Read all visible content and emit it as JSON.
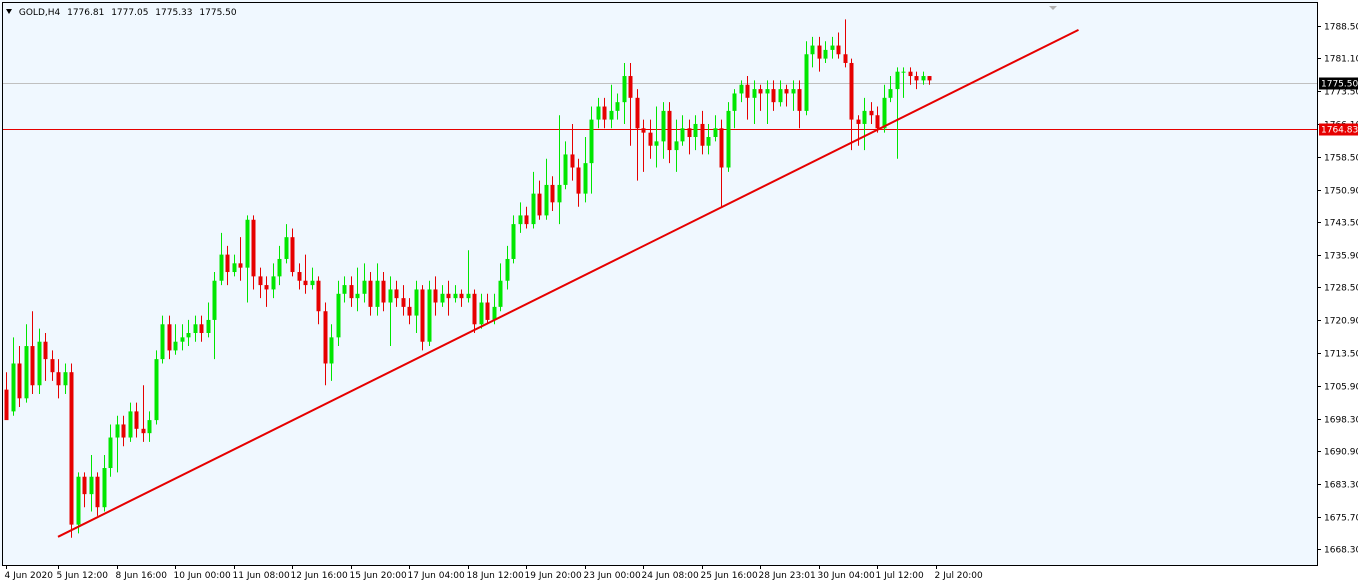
{
  "header": {
    "symbol": "GOLD,H4",
    "open": "1776.81",
    "high": "1777.05",
    "low": "1775.33",
    "close": "1775.50"
  },
  "colors": {
    "background": "#f0f8ff",
    "bull": "#00e600",
    "bear": "#e60000",
    "trendline": "#e60000",
    "hline": "#e60000",
    "bidline": "#c0c0c0",
    "axis": "#000000"
  },
  "chart_data": {
    "type": "candlestick",
    "symbol": "GOLD",
    "timeframe": "H4",
    "ylim": [
      1664.5,
      1794
    ],
    "y_ticks": [
      "1788.50",
      "1781.10",
      "1773.50",
      "1766.10",
      "1758.50",
      "1750.90",
      "1743.50",
      "1735.90",
      "1728.50",
      "1720.90",
      "1713.50",
      "1705.90",
      "1698.30",
      "1690.90",
      "1683.30",
      "1675.70",
      "1668.30"
    ],
    "x_ticks": [
      {
        "i": 0,
        "label": "4 Jun 2020"
      },
      {
        "i": 8,
        "label": "5 Jun 12:00"
      },
      {
        "i": 17,
        "label": "8 Jun 16:00"
      },
      {
        "i": 26,
        "label": "10 Jun 00:00"
      },
      {
        "i": 35,
        "label": "11 Jun 08:00"
      },
      {
        "i": 44,
        "label": "12 Jun 16:00"
      },
      {
        "i": 53,
        "label": "15 Jun 20:00"
      },
      {
        "i": 62,
        "label": "17 Jun 04:00"
      },
      {
        "i": 71,
        "label": "18 Jun 12:00"
      },
      {
        "i": 80,
        "label": "19 Jun 20:00"
      },
      {
        "i": 89,
        "label": "23 Jun 00:00"
      },
      {
        "i": 98,
        "label": "24 Jun 08:00"
      },
      {
        "i": 107,
        "label": "25 Jun 16:00"
      },
      {
        "i": 116,
        "label": "28 Jun 23:01"
      },
      {
        "i": 125,
        "label": "30 Jun 04:00"
      },
      {
        "i": 134,
        "label": "1 Jul 12:00"
      },
      {
        "i": 143,
        "label": "2 Jul 20:00"
      }
    ],
    "candles": [
      [
        1705,
        1698,
        1709,
        1700
      ],
      [
        1700,
        1711,
        1717,
        1699
      ],
      [
        1711,
        1703,
        1715,
        1701
      ],
      [
        1703,
        1715,
        1720,
        1702
      ],
      [
        1715,
        1706,
        1723,
        1704
      ],
      [
        1706,
        1716,
        1719,
        1704
      ],
      [
        1716,
        1712,
        1718,
        1707
      ],
      [
        1712,
        1709,
        1714,
        1707
      ],
      [
        1709,
        1706,
        1712,
        1703
      ],
      [
        1706,
        1709,
        1711,
        1704
      ],
      [
        1709,
        1674,
        1711,
        1671
      ],
      [
        1674,
        1685,
        1686,
        1672
      ],
      [
        1685,
        1681,
        1686,
        1678
      ],
      [
        1681,
        1685,
        1690,
        1677
      ],
      [
        1685,
        1678,
        1686,
        1676
      ],
      [
        1678,
        1687,
        1690,
        1677
      ],
      [
        1687,
        1694,
        1697,
        1685
      ],
      [
        1694,
        1697,
        1699,
        1686
      ],
      [
        1697,
        1694,
        1699,
        1692
      ],
      [
        1694,
        1700,
        1702,
        1693
      ],
      [
        1700,
        1696,
        1702,
        1694
      ],
      [
        1696,
        1695,
        1706,
        1693
      ],
      [
        1695,
        1698,
        1700,
        1693
      ],
      [
        1698,
        1712,
        1714,
        1697
      ],
      [
        1712,
        1720,
        1722,
        1711
      ],
      [
        1720,
        1714,
        1722,
        1712
      ],
      [
        1714,
        1716,
        1720,
        1713
      ],
      [
        1716,
        1717,
        1720,
        1714
      ],
      [
        1717,
        1718,
        1721,
        1715
      ],
      [
        1718,
        1720,
        1722,
        1716
      ],
      [
        1720,
        1718,
        1722,
        1716
      ],
      [
        1718,
        1721,
        1725,
        1717
      ],
      [
        1721,
        1730,
        1732,
        1712
      ],
      [
        1730,
        1736,
        1741,
        1729
      ],
      [
        1736,
        1732,
        1738,
        1729
      ],
      [
        1732,
        1734,
        1736,
        1731
      ],
      [
        1734,
        1733,
        1740,
        1730
      ],
      [
        1733,
        1744,
        1745,
        1725
      ],
      [
        1744,
        1731,
        1745,
        1728
      ],
      [
        1731,
        1729,
        1733,
        1726
      ],
      [
        1729,
        1728,
        1731,
        1724
      ],
      [
        1728,
        1731,
        1734,
        1726
      ],
      [
        1731,
        1735,
        1738,
        1729
      ],
      [
        1735,
        1740,
        1743,
        1734
      ],
      [
        1740,
        1732,
        1742,
        1731
      ],
      [
        1732,
        1730,
        1734,
        1728
      ],
      [
        1730,
        1729,
        1736,
        1727
      ],
      [
        1729,
        1730,
        1733,
        1728
      ],
      [
        1730,
        1723,
        1731,
        1720
      ],
      [
        1723,
        1711,
        1725,
        1706
      ],
      [
        1711,
        1717,
        1720,
        1707
      ],
      [
        1717,
        1727,
        1730,
        1715
      ],
      [
        1727,
        1729,
        1731,
        1725
      ],
      [
        1729,
        1726,
        1731,
        1724
      ],
      [
        1726,
        1727,
        1733,
        1723
      ],
      [
        1727,
        1730,
        1734,
        1725
      ],
      [
        1730,
        1724,
        1732,
        1722
      ],
      [
        1724,
        1730,
        1734,
        1722
      ],
      [
        1730,
        1725,
        1732,
        1723
      ],
      [
        1725,
        1728,
        1731,
        1715
      ],
      [
        1728,
        1726,
        1730,
        1724
      ],
      [
        1726,
        1724,
        1729,
        1722
      ],
      [
        1724,
        1722,
        1726,
        1720
      ],
      [
        1722,
        1728,
        1730,
        1718
      ],
      [
        1728,
        1716,
        1729,
        1714
      ],
      [
        1716,
        1728,
        1730,
        1715
      ],
      [
        1728,
        1725,
        1731,
        1722
      ],
      [
        1725,
        1727,
        1729,
        1724
      ],
      [
        1727,
        1726,
        1730,
        1722
      ],
      [
        1726,
        1727,
        1729,
        1725
      ],
      [
        1727,
        1726,
        1728,
        1724
      ],
      [
        1726,
        1727,
        1737,
        1725
      ],
      [
        1727,
        1720,
        1728,
        1718
      ],
      [
        1720,
        1725,
        1727,
        1719
      ],
      [
        1725,
        1721,
        1727,
        1720
      ],
      [
        1721,
        1724,
        1727,
        1720
      ],
      [
        1724,
        1730,
        1734,
        1723
      ],
      [
        1730,
        1735,
        1738,
        1728
      ],
      [
        1735,
        1743,
        1745,
        1734
      ],
      [
        1743,
        1745,
        1748,
        1741
      ],
      [
        1745,
        1743,
        1747,
        1742
      ],
      [
        1743,
        1750,
        1755,
        1742
      ],
      [
        1750,
        1745,
        1753,
        1744
      ],
      [
        1745,
        1752,
        1758,
        1744
      ],
      [
        1752,
        1748,
        1754,
        1746
      ],
      [
        1748,
        1752,
        1768,
        1743
      ],
      [
        1752,
        1759,
        1762,
        1751
      ],
      [
        1759,
        1756,
        1766,
        1753
      ],
      [
        1756,
        1750,
        1758,
        1747
      ],
      [
        1750,
        1757,
        1763,
        1748
      ],
      [
        1757,
        1767,
        1770,
        1750
      ],
      [
        1767,
        1770,
        1772,
        1765
      ],
      [
        1770,
        1767,
        1772,
        1765
      ],
      [
        1767,
        1769,
        1775,
        1765
      ],
      [
        1769,
        1771,
        1773,
        1767
      ],
      [
        1771,
        1777,
        1780,
        1766
      ],
      [
        1777,
        1772,
        1780,
        1761
      ],
      [
        1772,
        1765,
        1774,
        1753
      ],
      [
        1765,
        1764,
        1767,
        1755
      ],
      [
        1764,
        1761,
        1767,
        1758
      ],
      [
        1761,
        1762,
        1770,
        1756
      ],
      [
        1762,
        1769,
        1771,
        1758
      ],
      [
        1769,
        1760,
        1771,
        1757
      ],
      [
        1760,
        1762,
        1767,
        1755
      ],
      [
        1762,
        1765,
        1768,
        1761
      ],
      [
        1765,
        1763,
        1767,
        1759
      ],
      [
        1763,
        1766,
        1768,
        1760
      ],
      [
        1766,
        1761,
        1769,
        1759
      ],
      [
        1761,
        1763,
        1766,
        1759
      ],
      [
        1763,
        1765,
        1768,
        1762
      ],
      [
        1765,
        1756,
        1767,
        1747
      ],
      [
        1756,
        1769,
        1771,
        1755
      ],
      [
        1769,
        1773,
        1774,
        1765
      ],
      [
        1773,
        1775,
        1776,
        1771
      ],
      [
        1775,
        1772,
        1777,
        1767
      ],
      [
        1772,
        1774,
        1776,
        1766
      ],
      [
        1774,
        1773,
        1775,
        1769
      ],
      [
        1773,
        1774,
        1776,
        1766
      ],
      [
        1774,
        1771,
        1776,
        1769
      ],
      [
        1771,
        1774,
        1776,
        1770
      ],
      [
        1774,
        1773,
        1775,
        1770
      ],
      [
        1773,
        1774,
        1776,
        1769
      ],
      [
        1774,
        1769,
        1776,
        1765
      ],
      [
        1769,
        1782,
        1785,
        1768
      ],
      [
        1782,
        1784,
        1786,
        1779
      ],
      [
        1784,
        1781,
        1786,
        1778
      ],
      [
        1781,
        1783,
        1785,
        1780
      ],
      [
        1783,
        1784,
        1786,
        1781
      ],
      [
        1784,
        1782,
        1787,
        1781
      ],
      [
        1782,
        1780,
        1790,
        1779
      ],
      [
        1780,
        1767,
        1781,
        1760
      ],
      [
        1767,
        1766,
        1768,
        1761
      ],
      [
        1766,
        1769,
        1772,
        1760
      ],
      [
        1769,
        1768,
        1771,
        1766
      ],
      [
        1768,
        1765,
        1770,
        1764
      ],
      [
        1765,
        1772,
        1775,
        1764
      ],
      [
        1772,
        1774,
        1777,
        1771
      ],
      [
        1774,
        1778,
        1779,
        1758
      ],
      [
        1778,
        1778,
        1779,
        1772
      ],
      [
        1778,
        1777,
        1779,
        1775
      ],
      [
        1777,
        1776,
        1778,
        1774
      ],
      [
        1776,
        1777,
        1778,
        1775
      ],
      [
        1777,
        1776,
        1777,
        1775
      ]
    ],
    "trendline": {
      "from": {
        "i": 8,
        "price": 1671.2
      },
      "to": {
        "i": 165,
        "price": 1787.6
      }
    },
    "horizontal_line": {
      "price": 1764.83,
      "label": "1764.83"
    },
    "bid_line": {
      "price": 1775.5,
      "label": "1775.50"
    }
  }
}
